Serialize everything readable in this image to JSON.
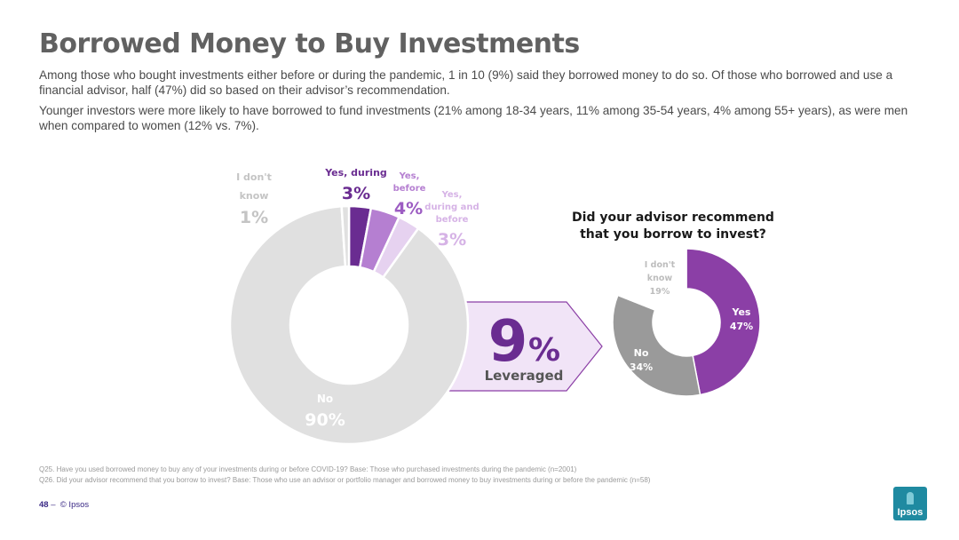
{
  "title": "Borrowed Money to Buy Investments",
  "paragraphs": [
    "Among those who bought investments either before or during the pandemic, 1 in 10 (9%) said they borrowed money to do so. Of those who borrowed and use a financial advisor, half (47%) did so based on their advisor’s recommendation.",
    "Younger investors were more likely to have borrowed to fund investments (21% among 18-34 years, 11%  among 35-54 years, 4% among 55+ years), as were men when compared to women (12% vs. 7%)."
  ],
  "chart_data": [
    {
      "type": "pie",
      "variant": "donut",
      "categories": [
        "Yes, during",
        "Yes, before",
        "Yes, during and before",
        "No",
        "I don't know"
      ],
      "values": [
        3,
        4,
        3,
        90,
        1
      ],
      "value_labels": [
        "3%",
        "4%",
        "3%",
        "90%",
        "1%"
      ],
      "colors": [
        "#6a2c91",
        "#b57fd1",
        "#e6d2f0",
        "#e0e0e0",
        "#e0e0e0"
      ]
    },
    {
      "type": "pie",
      "variant": "donut",
      "title": "Did your advisor recommend that you borrow to invest?",
      "categories": [
        "Yes",
        "No",
        "I don't know"
      ],
      "values": [
        47,
        34,
        19
      ],
      "value_labels": [
        "47%",
        "34%",
        "19%"
      ],
      "colors": [
        "#8b3fa6",
        "#9a9a9a",
        "#ffffff"
      ]
    }
  ],
  "callout": {
    "value": "9",
    "unit": "%",
    "label": "Leveraged"
  },
  "left_labels": {
    "dk_line1": "I don't",
    "dk_line2": "know",
    "yd": "Yes, during",
    "yb_line1": "Yes,",
    "yb_line2": "before",
    "ydb_line1": "Yes,",
    "ydb_line2": "during and",
    "ydb_line3": "before",
    "no": "No"
  },
  "right_labels": {
    "title_line1": "Did your advisor recommend",
    "title_line2": "that you borrow to invest?",
    "dk_line1": "I don't",
    "dk_line2": "know",
    "yes": "Yes",
    "no": "No"
  },
  "footnotes": [
    "Q25. Have you used borrowed money to buy any of your investments during or before COVID-19? Base: Those who purchased investments during the pandemic (n=2001)",
    "Q26. Did your advisor recommend that you borrow to invest? Base: Those who use an advisor or portfolio manager and borrowed money to buy investments during or before the pandemic (n=58)"
  ],
  "footer": {
    "page": "48",
    "separator": "–",
    "copyright": "© Ipsos"
  },
  "logo_text": "Ipsos"
}
